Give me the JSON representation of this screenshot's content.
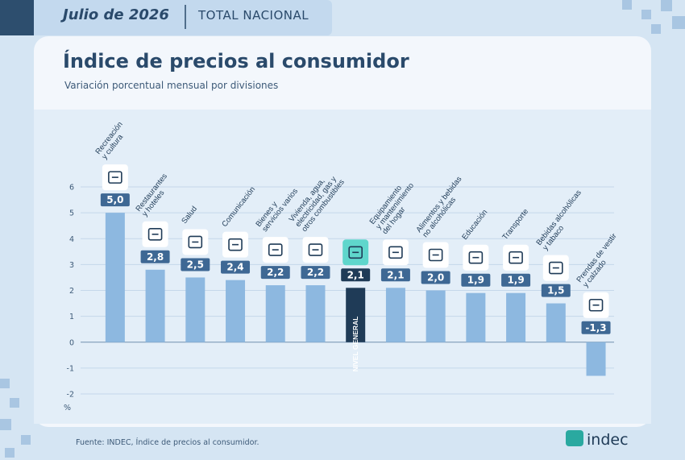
{
  "header": {
    "period": "Julio de 2026",
    "scope": "TOTAL NACIONAL"
  },
  "chart_data": {
    "type": "bar",
    "title": "Índice de precios al consumidor",
    "subtitle": "Variación porcentual mensual por divisiones",
    "y_unit": "%",
    "categories": [
      "Recreación\ny cultura",
      "Restaurantes\ny hoteles",
      "Salud",
      "Comunicación",
      "Bienes y\nservicios varios",
      "Vivienda, agua,\nelectricidad, gas y\notros combustibles",
      "NIVEL GENERAL",
      "Equipamiento\ny mantenimiento\ndel hogar",
      "Alimentos y bebidas\nno alcohólicas",
      "Educación",
      "Transporte",
      "Bebidas alcohólicas\ny tabaco",
      "Prendas de vestir\ny calzado"
    ],
    "values": [
      5.0,
      2.8,
      2.5,
      2.4,
      2.2,
      2.2,
      2.1,
      2.1,
      2.0,
      1.9,
      1.9,
      1.5,
      -1.3
    ],
    "value_labels": [
      "5,0",
      "2,8",
      "2,5",
      "2,4",
      "2,2",
      "2,2",
      "2,1",
      "2,1",
      "2,0",
      "1,9",
      "1,9",
      "1,5",
      "-1,3"
    ],
    "colors": [
      "#8db8e0",
      "#8db8e0",
      "#8db8e0",
      "#8db8e0",
      "#8db8e0",
      "#8db8e0",
      "#1f3b57",
      "#8db8e0",
      "#8db8e0",
      "#8db8e0",
      "#8db8e0",
      "#8db8e0",
      "#8db8e0"
    ],
    "ylim": [
      -2,
      6
    ],
    "yticks": [
      -2,
      -1,
      0,
      1,
      2,
      3,
      4,
      5,
      6
    ],
    "grid": true
  },
  "footer": {
    "source": "Fuente: INDEC, Índice de precios al consumidor.",
    "logo": "indec"
  }
}
